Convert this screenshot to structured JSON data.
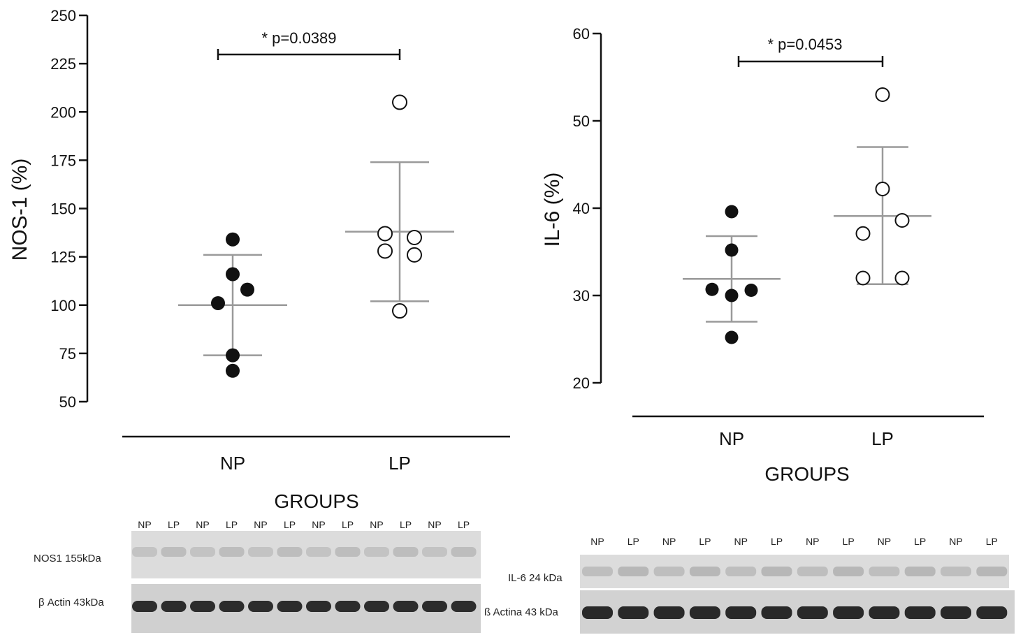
{
  "chart_data": [
    {
      "type": "scatter",
      "ylabel": "NOS-1 (%)",
      "xlabel": "GROUPS",
      "ylim": [
        50,
        250
      ],
      "yticks": [
        50,
        75,
        100,
        125,
        150,
        175,
        200,
        225,
        250
      ],
      "categories": [
        "NP",
        "LP"
      ],
      "series": [
        {
          "name": "NP",
          "filled": true,
          "values": [
            134,
            116,
            108,
            101,
            74,
            66
          ],
          "mean": 100,
          "sd_low": 74,
          "sd_high": 126
        },
        {
          "name": "LP",
          "filled": false,
          "values": [
            205,
            137,
            135,
            128,
            126,
            97
          ],
          "mean": 138,
          "sd_low": 102,
          "sd_high": 174
        }
      ],
      "significance": {
        "label": "* p=0.0389",
        "from": "NP",
        "to": "LP"
      }
    },
    {
      "type": "scatter",
      "ylabel": "IL-6 (%)",
      "xlabel": "GROUPS",
      "ylim": [
        20,
        60
      ],
      "yticks": [
        20,
        30,
        40,
        50,
        60
      ],
      "categories": [
        "NP",
        "LP"
      ],
      "series": [
        {
          "name": "NP",
          "filled": true,
          "values": [
            39.6,
            35.2,
            30.7,
            30.0,
            30.6,
            25.2
          ],
          "mean": 31.9,
          "sd_low": 27.0,
          "sd_high": 36.8
        },
        {
          "name": "LP",
          "filled": false,
          "values": [
            53.0,
            42.2,
            37.1,
            38.6,
            32.0,
            32.0
          ],
          "mean": 39.1,
          "sd_low": 31.3,
          "sd_high": 47.0
        }
      ],
      "significance": {
        "label": "* p=0.0453",
        "from": "NP",
        "to": "LP"
      }
    }
  ],
  "blots": [
    {
      "lanes": [
        "NP",
        "LP",
        "NP",
        "LP",
        "NP",
        "LP",
        "NP",
        "LP",
        "NP",
        "LP",
        "NP",
        "LP"
      ],
      "rows": [
        "NOS1 155kDa",
        "β Actin 43kDa"
      ]
    },
    {
      "lanes": [
        "NP",
        "LP",
        "NP",
        "LP",
        "NP",
        "LP",
        "NP",
        "LP",
        "NP",
        "LP",
        "NP",
        "LP"
      ],
      "rows": [
        "IL-6 24 kDa",
        "ß Actina 43 kDa"
      ]
    }
  ],
  "colors": {
    "points": "#111111",
    "error_bars": "#9a9a9a"
  }
}
